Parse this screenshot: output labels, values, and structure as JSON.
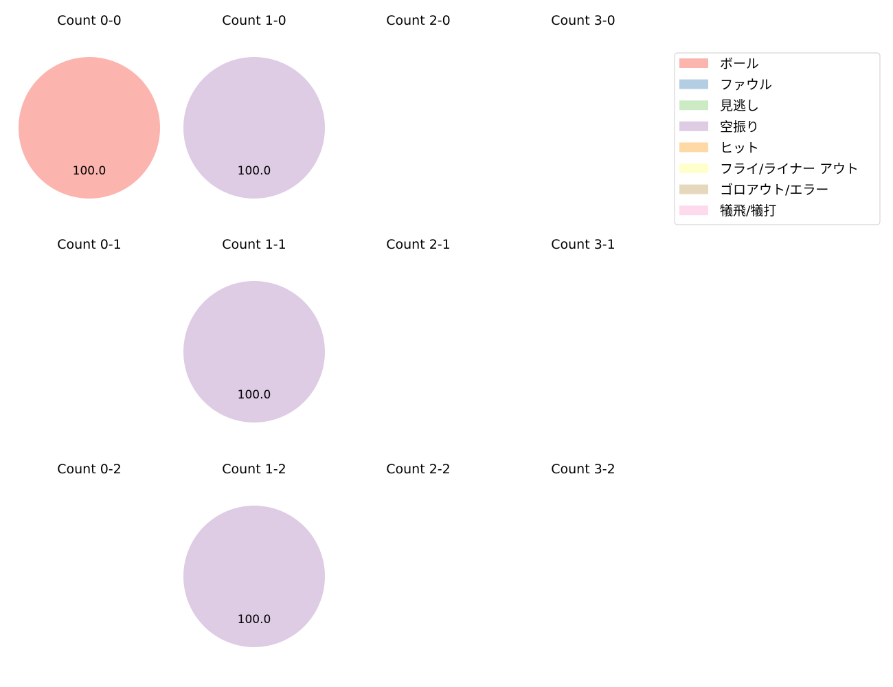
{
  "chart_data": {
    "type": "pie",
    "legend": {
      "placement": "top-right",
      "entries": [
        {
          "label": "ボール",
          "color": "#fbb4ae"
        },
        {
          "label": "ファウル",
          "color": "#b3cde3"
        },
        {
          "label": "見逃し",
          "color": "#ccebc5"
        },
        {
          "label": "空振り",
          "color": "#decbe4"
        },
        {
          "label": "ヒット",
          "color": "#fed9a6"
        },
        {
          "label": "フライ/ライナー アウト",
          "color": "#ffffcc"
        },
        {
          "label": "ゴロアウト/エラー",
          "color": "#e5d8bd"
        },
        {
          "label": "犠飛/犠打",
          "color": "#fddaec"
        }
      ]
    },
    "subplots": [
      {
        "title": "Count 0-0",
        "slices": [
          {
            "category": "ボール",
            "value": 100.0
          }
        ]
      },
      {
        "title": "Count 1-0",
        "slices": [
          {
            "category": "空振り",
            "value": 100.0
          }
        ]
      },
      {
        "title": "Count 2-0",
        "slices": []
      },
      {
        "title": "Count 3-0",
        "slices": []
      },
      {
        "title": "Count 0-1",
        "slices": []
      },
      {
        "title": "Count 1-1",
        "slices": [
          {
            "category": "空振り",
            "value": 100.0
          }
        ]
      },
      {
        "title": "Count 2-1",
        "slices": []
      },
      {
        "title": "Count 3-1",
        "slices": []
      },
      {
        "title": "Count 0-2",
        "slices": []
      },
      {
        "title": "Count 1-2",
        "slices": [
          {
            "category": "空振り",
            "value": 100.0
          }
        ]
      },
      {
        "title": "Count 2-2",
        "slices": []
      },
      {
        "title": "Count 3-2",
        "slices": []
      }
    ]
  }
}
